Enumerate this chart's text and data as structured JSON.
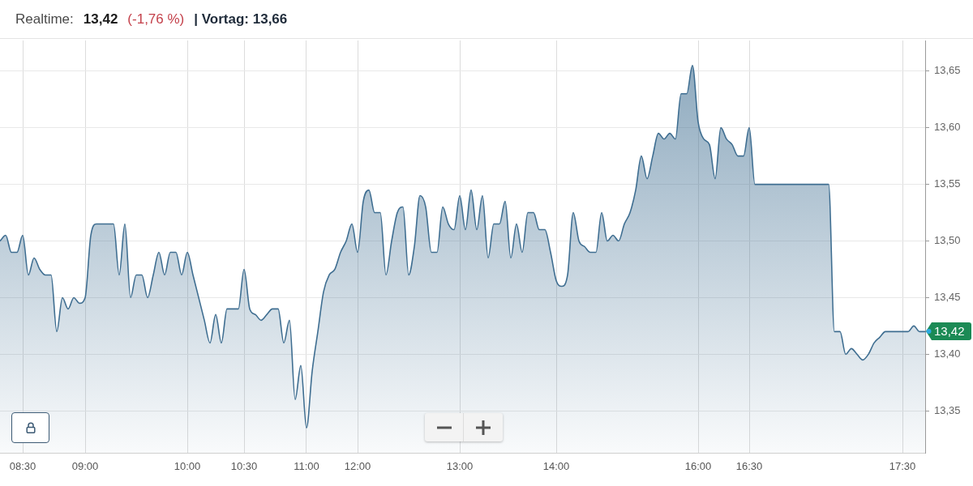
{
  "chart_data": {
    "type": "area",
    "categories": [
      null,
      null,
      null,
      null,
      "08:30",
      null,
      null,
      null,
      null,
      null,
      null,
      null,
      null,
      null,
      null,
      "09:00",
      null,
      null,
      null,
      null,
      null,
      null,
      null,
      null,
      null,
      null,
      null,
      null,
      null,
      null,
      null,
      null,
      null,
      "10:00",
      null,
      null,
      null,
      null,
      null,
      null,
      null,
      null,
      null,
      "10:30",
      null,
      null,
      null,
      null,
      null,
      null,
      null,
      null,
      null,
      null,
      "11:00",
      null,
      null,
      null,
      null,
      null,
      null,
      null,
      null,
      "12:00",
      null,
      null,
      null,
      null,
      null,
      null,
      null,
      null,
      null,
      null,
      null,
      null,
      null,
      null,
      null,
      null,
      null,
      "13:00",
      null,
      null,
      null,
      null,
      null,
      null,
      null,
      null,
      null,
      null,
      null,
      null,
      null,
      null,
      null,
      null,
      "14:00",
      null,
      null,
      null,
      null,
      null,
      null,
      null,
      null,
      null,
      null,
      null,
      null,
      null,
      null,
      null,
      null,
      null,
      null,
      null,
      null,
      null,
      null,
      null,
      null,
      "16:00",
      null,
      null,
      null,
      null,
      null,
      null,
      null,
      null,
      "16:30",
      null,
      null,
      null,
      null,
      null,
      null,
      null,
      null,
      null,
      null,
      null,
      null,
      null,
      null,
      null,
      null,
      null,
      null,
      null,
      null,
      null,
      null,
      null,
      null,
      null,
      null,
      "17:30",
      null,
      null,
      null,
      null
    ],
    "values": [
      13.5,
      13.505,
      13.49,
      13.49,
      13.505,
      13.47,
      13.485,
      13.475,
      13.47,
      13.47,
      13.42,
      13.45,
      13.44,
      13.45,
      13.445,
      13.45,
      13.505,
      13.515,
      13.515,
      13.515,
      13.515,
      13.47,
      13.515,
      13.45,
      13.47,
      13.47,
      13.45,
      13.47,
      13.49,
      13.47,
      13.49,
      13.49,
      13.47,
      13.49,
      13.47,
      13.45,
      13.43,
      13.41,
      13.435,
      13.41,
      13.44,
      13.44,
      13.44,
      13.475,
      13.44,
      13.435,
      13.43,
      13.435,
      13.44,
      13.44,
      13.41,
      13.43,
      13.36,
      13.39,
      13.335,
      13.385,
      13.42,
      13.455,
      13.47,
      13.475,
      13.49,
      13.5,
      13.515,
      13.49,
      13.535,
      13.545,
      13.525,
      13.525,
      13.47,
      13.5,
      13.525,
      13.53,
      13.47,
      13.495,
      13.54,
      13.53,
      13.49,
      13.49,
      13.53,
      13.515,
      13.51,
      13.54,
      13.51,
      13.545,
      13.51,
      13.54,
      13.485,
      13.515,
      13.515,
      13.535,
      13.485,
      13.515,
      13.49,
      13.525,
      13.525,
      13.51,
      13.51,
      13.49,
      13.465,
      13.46,
      13.47,
      13.525,
      13.5,
      13.495,
      13.49,
      13.49,
      13.525,
      13.5,
      13.505,
      13.5,
      13.515,
      13.525,
      13.545,
      13.575,
      13.555,
      13.575,
      13.595,
      13.59,
      13.595,
      13.59,
      13.63,
      13.63,
      13.655,
      13.605,
      13.59,
      13.585,
      13.555,
      13.6,
      13.59,
      13.585,
      13.575,
      13.575,
      13.6,
      13.55,
      13.55,
      13.55,
      13.55,
      13.55,
      13.55,
      13.55,
      13.55,
      13.55,
      13.55,
      13.55,
      13.55,
      13.55,
      13.55,
      13.42,
      13.42,
      13.4,
      13.405,
      13.4,
      13.395,
      13.4,
      13.41,
      13.415,
      13.42,
      13.42,
      13.42,
      13.42,
      13.42,
      13.425,
      13.42,
      13.42
    ],
    "color": "#3f6e91",
    "ylim": [
      13.313,
      13.677
    ],
    "yticks": [
      {
        "value": 13.35,
        "label": "13,35"
      },
      {
        "value": 13.4,
        "label": "13,40"
      },
      {
        "value": 13.45,
        "label": "13,45"
      },
      {
        "value": 13.5,
        "label": "13,50"
      },
      {
        "value": 13.55,
        "label": "13,55"
      },
      {
        "value": 13.6,
        "label": "13,60"
      },
      {
        "value": 13.65,
        "label": "13,65"
      }
    ],
    "grid": true,
    "annotations": [
      "Realtime:",
      "13,42",
      "(-1,76 %)",
      "| Vortag: 13,66",
      "13,42"
    ]
  }
}
